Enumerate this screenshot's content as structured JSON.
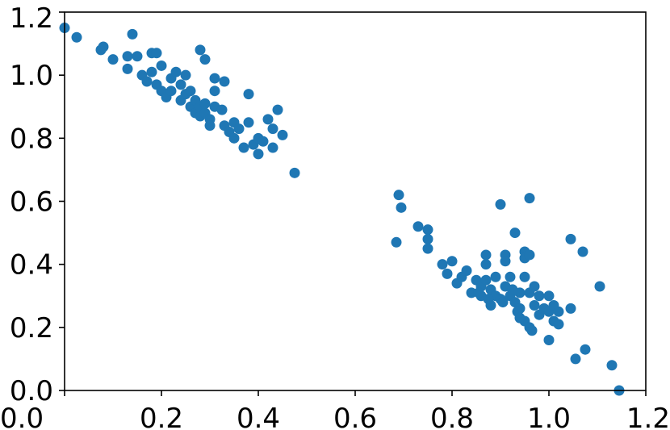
{
  "chart_data": {
    "type": "scatter",
    "title": "",
    "xlabel": "",
    "ylabel": "",
    "xlim": [
      0.0,
      1.2
    ],
    "ylim": [
      0.0,
      1.2
    ],
    "xticks": [
      "0.0",
      "0.2",
      "0.4",
      "0.6",
      "0.8",
      "1.0",
      "1.2"
    ],
    "yticks": [
      "0.0",
      "0.2",
      "0.4",
      "0.6",
      "0.8",
      "1.0",
      "1.2"
    ],
    "grid": false,
    "color": "#1f77b4",
    "series": [
      {
        "points": [
          [
            0.0,
            1.15
          ],
          [
            0.025,
            1.12
          ],
          [
            0.075,
            1.08
          ],
          [
            0.08,
            1.09
          ],
          [
            0.1,
            1.05
          ],
          [
            0.14,
            1.13
          ],
          [
            0.13,
            1.06
          ],
          [
            0.13,
            1.02
          ],
          [
            0.15,
            1.06
          ],
          [
            0.16,
            1.0
          ],
          [
            0.17,
            0.98
          ],
          [
            0.18,
            1.01
          ],
          [
            0.18,
            1.07
          ],
          [
            0.19,
            1.07
          ],
          [
            0.2,
            1.03
          ],
          [
            0.19,
            0.97
          ],
          [
            0.2,
            0.95
          ],
          [
            0.21,
            0.93
          ],
          [
            0.22,
            0.99
          ],
          [
            0.22,
            0.95
          ],
          [
            0.23,
            1.01
          ],
          [
            0.24,
            0.97
          ],
          [
            0.24,
            0.92
          ],
          [
            0.25,
            1.0
          ],
          [
            0.25,
            0.94
          ],
          [
            0.26,
            0.95
          ],
          [
            0.26,
            0.9
          ],
          [
            0.27,
            0.92
          ],
          [
            0.27,
            0.88
          ],
          [
            0.28,
            0.9
          ],
          [
            0.28,
            0.87
          ],
          [
            0.29,
            0.88
          ],
          [
            0.29,
            0.91
          ],
          [
            0.3,
            0.86
          ],
          [
            0.31,
            0.9
          ],
          [
            0.28,
            1.08
          ],
          [
            0.29,
            1.05
          ],
          [
            0.31,
            0.99
          ],
          [
            0.31,
            0.95
          ],
          [
            0.33,
            0.98
          ],
          [
            0.33,
            0.84
          ],
          [
            0.34,
            0.82
          ],
          [
            0.35,
            0.85
          ],
          [
            0.35,
            0.8
          ],
          [
            0.36,
            0.83
          ],
          [
            0.37,
            0.77
          ],
          [
            0.38,
            0.85
          ],
          [
            0.38,
            0.94
          ],
          [
            0.39,
            0.78
          ],
          [
            0.4,
            0.8
          ],
          [
            0.4,
            0.75
          ],
          [
            0.41,
            0.79
          ],
          [
            0.42,
            0.86
          ],
          [
            0.43,
            0.83
          ],
          [
            0.43,
            0.77
          ],
          [
            0.44,
            0.89
          ],
          [
            0.45,
            0.81
          ],
          [
            0.475,
            0.69
          ],
          [
            0.3,
            0.84
          ],
          [
            0.325,
            0.89
          ],
          [
            0.685,
            0.47
          ],
          [
            0.69,
            0.62
          ],
          [
            0.695,
            0.58
          ],
          [
            0.73,
            0.52
          ],
          [
            0.75,
            0.51
          ],
          [
            0.75,
            0.48
          ],
          [
            0.75,
            0.45
          ],
          [
            0.78,
            0.4
          ],
          [
            0.79,
            0.37
          ],
          [
            0.8,
            0.41
          ],
          [
            0.81,
            0.34
          ],
          [
            0.82,
            0.36
          ],
          [
            0.83,
            0.38
          ],
          [
            0.84,
            0.31
          ],
          [
            0.85,
            0.35
          ],
          [
            0.86,
            0.33
          ],
          [
            0.86,
            0.3
          ],
          [
            0.87,
            0.4
          ],
          [
            0.87,
            0.43
          ],
          [
            0.87,
            0.35
          ],
          [
            0.88,
            0.32
          ],
          [
            0.88,
            0.27
          ],
          [
            0.89,
            0.36
          ],
          [
            0.89,
            0.3
          ],
          [
            0.9,
            0.29
          ],
          [
            0.9,
            0.59
          ],
          [
            0.91,
            0.43
          ],
          [
            0.91,
            0.41
          ],
          [
            0.91,
            0.33
          ],
          [
            0.92,
            0.3
          ],
          [
            0.92,
            0.36
          ],
          [
            0.93,
            0.5
          ],
          [
            0.93,
            0.28
          ],
          [
            0.94,
            0.31
          ],
          [
            0.94,
            0.26
          ],
          [
            0.95,
            0.44
          ],
          [
            0.95,
            0.42
          ],
          [
            0.95,
            0.36
          ],
          [
            0.95,
            0.22
          ],
          [
            0.96,
            0.61
          ],
          [
            0.96,
            0.43
          ],
          [
            0.96,
            0.31
          ],
          [
            0.96,
            0.2
          ],
          [
            0.97,
            0.27
          ],
          [
            0.97,
            0.33
          ],
          [
            0.98,
            0.3
          ],
          [
            0.98,
            0.24
          ],
          [
            0.99,
            0.26
          ],
          [
            1.0,
            0.3
          ],
          [
            1.0,
            0.25
          ],
          [
            1.0,
            0.16
          ],
          [
            1.01,
            0.22
          ],
          [
            1.01,
            0.27
          ],
          [
            1.02,
            0.25
          ],
          [
            1.02,
            0.21
          ],
          [
            1.045,
            0.48
          ],
          [
            1.045,
            0.26
          ],
          [
            1.055,
            0.1
          ],
          [
            1.07,
            0.44
          ],
          [
            1.075,
            0.13
          ],
          [
            1.105,
            0.33
          ],
          [
            1.13,
            0.08
          ],
          [
            1.145,
            0.0
          ],
          [
            0.935,
            0.25
          ],
          [
            0.94,
            0.23
          ],
          [
            0.925,
            0.32
          ],
          [
            0.905,
            0.28
          ],
          [
            0.875,
            0.29
          ],
          [
            0.855,
            0.31
          ],
          [
            0.965,
            0.19
          ]
        ]
      }
    ]
  }
}
